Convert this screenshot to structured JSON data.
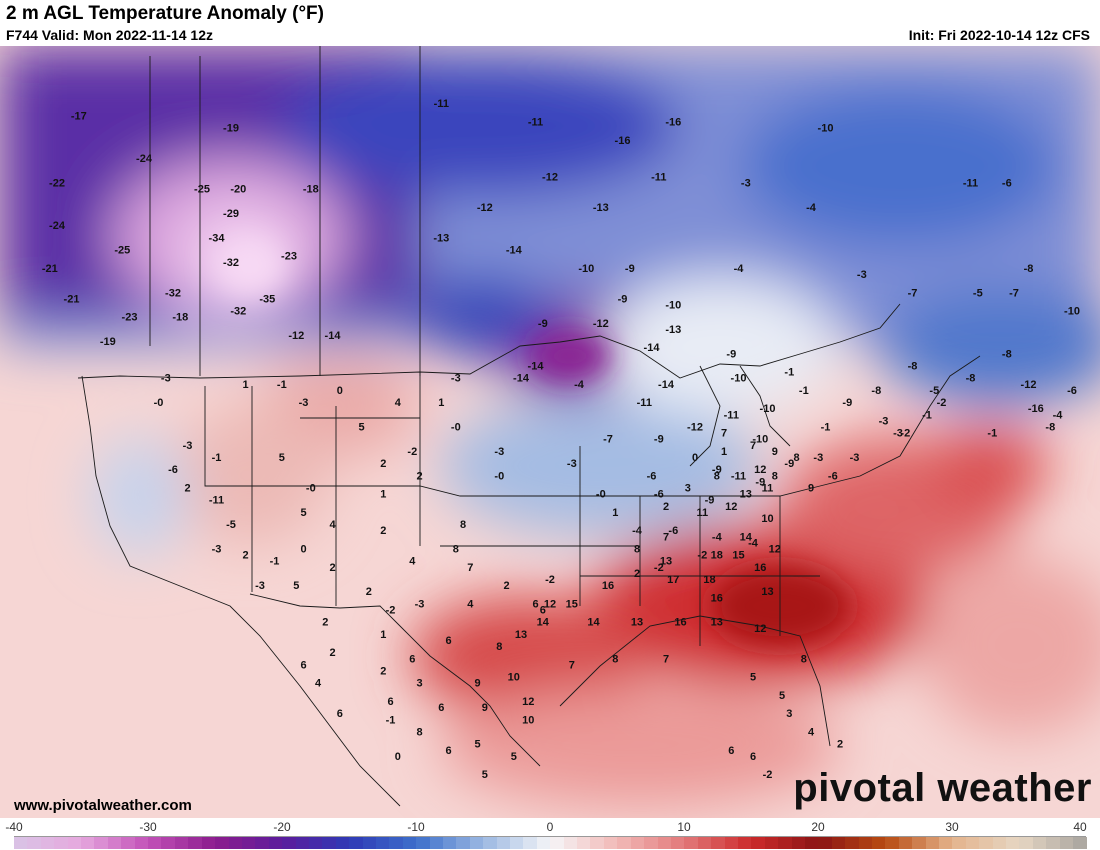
{
  "header": {
    "title": "2 m AGL Temperature Anomaly (°F)",
    "valid": "F744 Valid: Mon 2022-11-14 12z",
    "init": "Init: Fri 2022-10-14 12z CFS"
  },
  "footer": {
    "website": "www.pivotalweather.com",
    "brand": "pivotal weather"
  },
  "legend": {
    "ticks": [
      "-40",
      "-30",
      "-20",
      "-10",
      "0",
      "10",
      "20",
      "30",
      "40"
    ],
    "range": [
      -40,
      40
    ],
    "stops": [
      {
        "v": -40,
        "c": "#d9c4e6"
      },
      {
        "v": -35,
        "c": "#e6a8de"
      },
      {
        "v": -30,
        "c": "#c251b8"
      },
      {
        "v": -25,
        "c": "#8c1c8e"
      },
      {
        "v": -20,
        "c": "#5b1c9c"
      },
      {
        "v": -15,
        "c": "#2f3ab6"
      },
      {
        "v": -10,
        "c": "#3d6fcb"
      },
      {
        "v": -5,
        "c": "#9bb8e2"
      },
      {
        "v": 0,
        "c": "#f5f5f7"
      },
      {
        "v": 5,
        "c": "#f2b9b7"
      },
      {
        "v": 10,
        "c": "#e2797a"
      },
      {
        "v": 15,
        "c": "#cc2a2b"
      },
      {
        "v": 20,
        "c": "#8c1515"
      },
      {
        "v": 25,
        "c": "#b84b12"
      },
      {
        "v": 30,
        "c": "#e4b38c"
      },
      {
        "v": 35,
        "c": "#e6d6c3"
      },
      {
        "v": 40,
        "c": "#a8a49e"
      }
    ]
  },
  "map_values": [
    {
      "v": "-17",
      "lon": -127.5,
      "lat": 61.0
    },
    {
      "v": "-19",
      "lon": -117.0,
      "lat": 60.0
    },
    {
      "v": "-17",
      "lon": -133.0,
      "lat": 57.5
    },
    {
      "v": "-24",
      "lon": -123.0,
      "lat": 57.5
    },
    {
      "v": "-22",
      "lon": -129.0,
      "lat": 55.5
    },
    {
      "v": "-25",
      "lon": -119.0,
      "lat": 55.0
    },
    {
      "v": "-20",
      "lon": -116.5,
      "lat": 55.0
    },
    {
      "v": "-18",
      "lon": -111.5,
      "lat": 55.0
    },
    {
      "v": "-29",
      "lon": -117.0,
      "lat": 53.0
    },
    {
      "v": "-24",
      "lon": -129.0,
      "lat": 52.0
    },
    {
      "v": "-34",
      "lon": -118.0,
      "lat": 51.0
    },
    {
      "v": "-25",
      "lon": -124.5,
      "lat": 50.0
    },
    {
      "v": "-32",
      "lon": -117.0,
      "lat": 49.0
    },
    {
      "v": "-23",
      "lon": -113.0,
      "lat": 49.5
    },
    {
      "v": "-32",
      "lon": -121.0,
      "lat": 46.5
    },
    {
      "v": "-35",
      "lon": -114.5,
      "lat": 46.0
    },
    {
      "v": "-32",
      "lon": -116.5,
      "lat": 45.0
    },
    {
      "v": "-23",
      "lon": -124.0,
      "lat": 44.5
    },
    {
      "v": "-18",
      "lon": -120.5,
      "lat": 44.5
    },
    {
      "v": "-19",
      "lon": -125.5,
      "lat": 42.5
    },
    {
      "v": "-12",
      "lon": -112.5,
      "lat": 43.0
    },
    {
      "v": "-14",
      "lon": -110.0,
      "lat": 43.0
    },
    {
      "v": "-21",
      "lon": -129.5,
      "lat": 48.5
    },
    {
      "v": "-21",
      "lon": -128.0,
      "lat": 46.0
    },
    {
      "v": "-11",
      "lon": -102.5,
      "lat": 62.0
    },
    {
      "v": "-11",
      "lon": -96.0,
      "lat": 60.5
    },
    {
      "v": "-16",
      "lon": -86.5,
      "lat": 60.5
    },
    {
      "v": "-16",
      "lon": -90.0,
      "lat": 59.0
    },
    {
      "v": "-12",
      "lon": -99.5,
      "lat": 53.5
    },
    {
      "v": "-13",
      "lon": -102.5,
      "lat": 51.0
    },
    {
      "v": "-12",
      "lon": -95.0,
      "lat": 56.0
    },
    {
      "v": "-11",
      "lon": -87.5,
      "lat": 56.0
    },
    {
      "v": "-13",
      "lon": -91.5,
      "lat": 53.5
    },
    {
      "v": "-14",
      "lon": -97.5,
      "lat": 50.0
    },
    {
      "v": "-10",
      "lon": -92.5,
      "lat": 48.5
    },
    {
      "v": "-9",
      "lon": -89.5,
      "lat": 48.5
    },
    {
      "v": "-10",
      "lon": -76.0,
      "lat": 60.0
    },
    {
      "v": "-3",
      "lon": -81.5,
      "lat": 55.5
    },
    {
      "v": "-4",
      "lon": -77.0,
      "lat": 53.5
    },
    {
      "v": "-4",
      "lon": -82.0,
      "lat": 48.5
    },
    {
      "v": "-11",
      "lon": -66.0,
      "lat": 55.5
    },
    {
      "v": "-6",
      "lon": -63.5,
      "lat": 55.5
    },
    {
      "v": "-3",
      "lon": -73.5,
      "lat": 48.0
    },
    {
      "v": "-7",
      "lon": -70.0,
      "lat": 46.5
    },
    {
      "v": "-5",
      "lon": -65.5,
      "lat": 46.5
    },
    {
      "v": "-7",
      "lon": -63.0,
      "lat": 46.5
    },
    {
      "v": "-8",
      "lon": -62.0,
      "lat": 48.5
    },
    {
      "v": "-11",
      "lon": -57.5,
      "lat": 46.5
    },
    {
      "v": "-10",
      "lon": -59.0,
      "lat": 45.0
    },
    {
      "v": "-14",
      "lon": -53.5,
      "lat": 42.5
    },
    {
      "v": "-11",
      "lon": -57.0,
      "lat": 42.0
    },
    {
      "v": "-9",
      "lon": -90.0,
      "lat": 46.0
    },
    {
      "v": "-10",
      "lon": -86.5,
      "lat": 45.5
    },
    {
      "v": "-13",
      "lon": -86.5,
      "lat": 43.5
    },
    {
      "v": "-12",
      "lon": -91.5,
      "lat": 44.0
    },
    {
      "v": "-9",
      "lon": -95.5,
      "lat": 44.0
    },
    {
      "v": "-14",
      "lon": -88.0,
      "lat": 42.0
    },
    {
      "v": "-14",
      "lon": -96.0,
      "lat": 40.5
    },
    {
      "v": "-9",
      "lon": -82.5,
      "lat": 41.5
    },
    {
      "v": "-10",
      "lon": -82.0,
      "lat": 39.5
    },
    {
      "v": "-4",
      "lon": -93.0,
      "lat": 39.0
    },
    {
      "v": "-14",
      "lon": -87.0,
      "lat": 39.0
    },
    {
      "v": "-11",
      "lon": -88.5,
      "lat": 37.5
    },
    {
      "v": "-10",
      "lon": -80.0,
      "lat": 37.0
    },
    {
      "v": "-11",
      "lon": -82.5,
      "lat": 36.5
    },
    {
      "v": "-12",
      "lon": -85.0,
      "lat": 35.5
    },
    {
      "v": "-7",
      "lon": -91.0,
      "lat": 34.5
    },
    {
      "v": "-9",
      "lon": -87.5,
      "lat": 34.5
    },
    {
      "v": "-10",
      "lon": -80.5,
      "lat": 34.5
    },
    {
      "v": "-9",
      "lon": -78.5,
      "lat": 32.5
    },
    {
      "v": "-11",
      "lon": -82.0,
      "lat": 31.5
    },
    {
      "v": "-9",
      "lon": -80.5,
      "lat": 31.0
    },
    {
      "v": "-6",
      "lon": -88.0,
      "lat": 31.5
    },
    {
      "v": "-6",
      "lon": -87.5,
      "lat": 30.0
    },
    {
      "v": "-9",
      "lon": -84.0,
      "lat": 29.5
    },
    {
      "v": "-9",
      "lon": -83.5,
      "lat": 32.0
    },
    {
      "v": "-3",
      "lon": -93.5,
      "lat": 32.5
    },
    {
      "v": "-0",
      "lon": -91.5,
      "lat": 30.0
    },
    {
      "v": "-4",
      "lon": -89.0,
      "lat": 27.0
    },
    {
      "v": "-6",
      "lon": -86.5,
      "lat": 27.0
    },
    {
      "v": "-4",
      "lon": -83.5,
      "lat": 26.5
    },
    {
      "v": "-4",
      "lon": -81.0,
      "lat": 26.0
    },
    {
      "v": "-2",
      "lon": -84.5,
      "lat": 25.0
    },
    {
      "v": "-2",
      "lon": -87.5,
      "lat": 24.0
    },
    {
      "v": "2",
      "lon": -89.0,
      "lat": 23.5
    },
    {
      "v": "-1",
      "lon": -78.5,
      "lat": 40.0
    },
    {
      "v": "-1",
      "lon": -77.5,
      "lat": 38.5
    },
    {
      "v": "-9",
      "lon": -74.5,
      "lat": 37.5
    },
    {
      "v": "-8",
      "lon": -72.5,
      "lat": 38.5
    },
    {
      "v": "-3",
      "lon": -72.0,
      "lat": 36.0
    },
    {
      "v": "-3",
      "lon": -74.0,
      "lat": 33.0
    },
    {
      "v": "-6",
      "lon": -75.5,
      "lat": 31.5
    },
    {
      "v": "-1",
      "lon": -76.0,
      "lat": 35.5
    },
    {
      "v": "-3",
      "lon": -76.5,
      "lat": 33.0
    },
    {
      "v": "-3",
      "lon": -71.0,
      "lat": 35.0
    },
    {
      "v": "-8",
      "lon": -70.0,
      "lat": 40.5
    },
    {
      "v": "-5",
      "lon": -68.5,
      "lat": 38.5
    },
    {
      "v": "-2",
      "lon": -68.0,
      "lat": 37.5
    },
    {
      "v": "-1",
      "lon": -69.0,
      "lat": 36.5
    },
    {
      "v": "-2",
      "lon": -70.5,
      "lat": 35.0
    },
    {
      "v": "-8",
      "lon": -63.5,
      "lat": 41.5
    },
    {
      "v": "-8",
      "lon": -66.0,
      "lat": 39.5
    },
    {
      "v": "-12",
      "lon": -62.0,
      "lat": 39.0
    },
    {
      "v": "-16",
      "lon": -61.5,
      "lat": 37.0
    },
    {
      "v": "-8",
      "lon": -60.5,
      "lat": 35.5
    },
    {
      "v": "-4",
      "lon": -60.0,
      "lat": 36.5
    },
    {
      "v": "-1",
      "lon": -64.5,
      "lat": 35.0
    },
    {
      "v": "-6",
      "lon": -59.0,
      "lat": 38.5
    },
    {
      "v": "-11",
      "lon": -57.0,
      "lat": 39.5
    },
    {
      "v": "-3",
      "lon": -121.5,
      "lat": 39.5
    },
    {
      "v": "1",
      "lon": -116.0,
      "lat": 39.0
    },
    {
      "v": "-1",
      "lon": -113.5,
      "lat": 39.0
    },
    {
      "v": "0",
      "lon": -109.5,
      "lat": 38.5
    },
    {
      "v": "-0",
      "lon": -122.0,
      "lat": 37.5
    },
    {
      "v": "-3",
      "lon": -112.0,
      "lat": 37.5
    },
    {
      "v": "4",
      "lon": -105.5,
      "lat": 37.5
    },
    {
      "v": "1",
      "lon": -102.5,
      "lat": 37.5
    },
    {
      "v": "-3",
      "lon": -101.5,
      "lat": 39.5
    },
    {
      "v": "-14",
      "lon": -97.0,
      "lat": 39.5
    },
    {
      "v": "-0",
      "lon": -101.5,
      "lat": 35.5
    },
    {
      "v": "5",
      "lon": -108.0,
      "lat": 35.5
    },
    {
      "v": "-3",
      "lon": -120.0,
      "lat": 34.0
    },
    {
      "v": "-1",
      "lon": -118.0,
      "lat": 33.0
    },
    {
      "v": "5",
      "lon": -113.5,
      "lat": 33.0
    },
    {
      "v": "-6",
      "lon": -121.0,
      "lat": 32.0
    },
    {
      "v": "2",
      "lon": -106.5,
      "lat": 32.5
    },
    {
      "v": "-2",
      "lon": -104.5,
      "lat": 33.5
    },
    {
      "v": "-3",
      "lon": -98.5,
      "lat": 33.5
    },
    {
      "v": "2",
      "lon": -104.0,
      "lat": 31.5
    },
    {
      "v": "2",
      "lon": -120.0,
      "lat": 30.5
    },
    {
      "v": "-11",
      "lon": -118.0,
      "lat": 29.5
    },
    {
      "v": "-0",
      "lon": -111.5,
      "lat": 30.5
    },
    {
      "v": "1",
      "lon": -106.5,
      "lat": 30.0
    },
    {
      "v": "-0",
      "lon": -98.5,
      "lat": 31.5
    },
    {
      "v": "-5",
      "lon": -117.0,
      "lat": 27.5
    },
    {
      "v": "5",
      "lon": -112.0,
      "lat": 28.5
    },
    {
      "v": "4",
      "lon": -110.0,
      "lat": 27.5
    },
    {
      "v": "2",
      "lon": -106.5,
      "lat": 27.0
    },
    {
      "v": "8",
      "lon": -101.0,
      "lat": 27.5
    },
    {
      "v": "8",
      "lon": -101.5,
      "lat": 25.5
    },
    {
      "v": "-3",
      "lon": -118.0,
      "lat": 25.5
    },
    {
      "v": "2",
      "lon": -116.0,
      "lat": 25.0
    },
    {
      "v": "-1",
      "lon": -114.0,
      "lat": 24.5
    },
    {
      "v": "0",
      "lon": -112.0,
      "lat": 25.5
    },
    {
      "v": "2",
      "lon": -110.0,
      "lat": 24.0
    },
    {
      "v": "4",
      "lon": -104.5,
      "lat": 24.5
    },
    {
      "v": "7",
      "lon": -100.5,
      "lat": 24.0
    },
    {
      "v": "-3",
      "lon": -115.0,
      "lat": 22.5
    },
    {
      "v": "5",
      "lon": -112.5,
      "lat": 22.5
    },
    {
      "v": "2",
      "lon": -107.5,
      "lat": 22.0
    },
    {
      "v": "4",
      "lon": -100.5,
      "lat": 21.0
    },
    {
      "v": "2",
      "lon": -98.0,
      "lat": 22.5
    },
    {
      "v": "-2",
      "lon": -106.0,
      "lat": 20.5
    },
    {
      "v": "-2",
      "lon": -95.0,
      "lat": 23.0
    },
    {
      "v": "2",
      "lon": -110.5,
      "lat": 19.5
    },
    {
      "v": "1",
      "lon": -106.5,
      "lat": 18.5
    },
    {
      "v": "-3",
      "lon": -104.0,
      "lat": 21.0
    },
    {
      "v": "2",
      "lon": -110.0,
      "lat": 17.0
    },
    {
      "v": "6",
      "lon": -102.0,
      "lat": 18.0
    },
    {
      "v": "6",
      "lon": -95.5,
      "lat": 20.5
    },
    {
      "v": "6",
      "lon": -104.5,
      "lat": 16.5
    },
    {
      "v": "2",
      "lon": -106.5,
      "lat": 15.5
    },
    {
      "v": "3",
      "lon": -104.0,
      "lat": 14.5
    },
    {
      "v": "9",
      "lon": -100.0,
      "lat": 14.5
    },
    {
      "v": "10",
      "lon": -97.5,
      "lat": 15.0
    },
    {
      "v": "6",
      "lon": -106.0,
      "lat": 13.0
    },
    {
      "v": "6",
      "lon": -102.5,
      "lat": 12.5
    },
    {
      "v": "9",
      "lon": -99.5,
      "lat": 12.5
    },
    {
      "v": "12",
      "lon": -96.5,
      "lat": 13.0
    },
    {
      "v": "-1",
      "lon": -106.0,
      "lat": 11.5
    },
    {
      "v": "8",
      "lon": -104.0,
      "lat": 10.5
    },
    {
      "v": "10",
      "lon": -96.5,
      "lat": 11.5
    },
    {
      "v": "0",
      "lon": -105.5,
      "lat": 8.5
    },
    {
      "v": "6",
      "lon": -102.0,
      "lat": 9.0
    },
    {
      "v": "5",
      "lon": -100.0,
      "lat": 9.5
    },
    {
      "v": "5",
      "lon": -97.5,
      "lat": 8.5
    },
    {
      "v": "5",
      "lon": -99.5,
      "lat": 7.0
    },
    {
      "v": "4",
      "lon": -111.0,
      "lat": 14.5
    },
    {
      "v": "6",
      "lon": -109.5,
      "lat": 12.0
    },
    {
      "v": "6",
      "lon": -112.0,
      "lat": 16.0
    },
    {
      "v": "13",
      "lon": -97.0,
      "lat": 18.5
    },
    {
      "v": "8",
      "lon": -98.5,
      "lat": 17.5
    },
    {
      "v": "7",
      "lon": -93.5,
      "lat": 16.0
    },
    {
      "v": "8",
      "lon": -90.5,
      "lat": 16.5
    },
    {
      "v": "7",
      "lon": -87.0,
      "lat": 16.5
    },
    {
      "v": "6",
      "lon": -96.0,
      "lat": 21.0
    },
    {
      "v": "12",
      "lon": -95.0,
      "lat": 21.0
    },
    {
      "v": "14",
      "lon": -95.5,
      "lat": 19.5
    },
    {
      "v": "14",
      "lon": -92.0,
      "lat": 19.5
    },
    {
      "v": "15",
      "lon": -93.5,
      "lat": 21.0
    },
    {
      "v": "13",
      "lon": -89.0,
      "lat": 19.5
    },
    {
      "v": "16",
      "lon": -86.0,
      "lat": 19.5
    },
    {
      "v": "16",
      "lon": -91.0,
      "lat": 22.5
    },
    {
      "v": "13",
      "lon": -87.0,
      "lat": 24.5
    },
    {
      "v": "17",
      "lon": -86.5,
      "lat": 23.0
    },
    {
      "v": "18",
      "lon": -84.0,
      "lat": 23.0
    },
    {
      "v": "16",
      "lon": -83.5,
      "lat": 21.5
    },
    {
      "v": "13",
      "lon": -83.5,
      "lat": 19.5
    },
    {
      "v": "12",
      "lon": -80.5,
      "lat": 19.0
    },
    {
      "v": "13",
      "lon": -80.0,
      "lat": 22.0
    },
    {
      "v": "15",
      "lon": -82.0,
      "lat": 25.0
    },
    {
      "v": "16",
      "lon": -80.5,
      "lat": 24.0
    },
    {
      "v": "18",
      "lon": -83.5,
      "lat": 25.0
    },
    {
      "v": "12",
      "lon": -79.5,
      "lat": 25.5
    },
    {
      "v": "14",
      "lon": -81.5,
      "lat": 26.5
    },
    {
      "v": "8",
      "lon": -89.0,
      "lat": 25.5
    },
    {
      "v": "7",
      "lon": -87.0,
      "lat": 26.5
    },
    {
      "v": "11",
      "lon": -84.5,
      "lat": 28.5
    },
    {
      "v": "2",
      "lon": -87.0,
      "lat": 29.0
    },
    {
      "v": "1",
      "lon": -90.5,
      "lat": 28.5
    },
    {
      "v": "12",
      "lon": -82.5,
      "lat": 29.0
    },
    {
      "v": "10",
      "lon": -80.0,
      "lat": 28.0
    },
    {
      "v": "13",
      "lon": -81.5,
      "lat": 30.0
    },
    {
      "v": "11",
      "lon": -80.0,
      "lat": 30.5
    },
    {
      "v": "12",
      "lon": -80.5,
      "lat": 32.0
    },
    {
      "v": "8",
      "lon": -79.5,
      "lat": 31.5
    },
    {
      "v": "8",
      "lon": -83.5,
      "lat": 31.5
    },
    {
      "v": "3",
      "lon": -85.5,
      "lat": 30.5
    },
    {
      "v": "0",
      "lon": -85.0,
      "lat": 33.0
    },
    {
      "v": "1",
      "lon": -83.0,
      "lat": 33.5
    },
    {
      "v": "7",
      "lon": -81.0,
      "lat": 34.0
    },
    {
      "v": "7",
      "lon": -83.0,
      "lat": 35.0
    },
    {
      "v": "9",
      "lon": -79.5,
      "lat": 33.5
    },
    {
      "v": "8",
      "lon": -78.0,
      "lat": 33.0
    },
    {
      "v": "9",
      "lon": -77.0,
      "lat": 30.5
    },
    {
      "v": "8",
      "lon": -77.5,
      "lat": 16.5
    },
    {
      "v": "5",
      "lon": -81.0,
      "lat": 15.0
    },
    {
      "v": "5",
      "lon": -79.0,
      "lat": 13.5
    },
    {
      "v": "3",
      "lon": -78.5,
      "lat": 12.0
    },
    {
      "v": "4",
      "lon": -77.0,
      "lat": 10.5
    },
    {
      "v": "2",
      "lon": -75.0,
      "lat": 9.5
    },
    {
      "v": "6",
      "lon": -81.0,
      "lat": 8.5
    },
    {
      "v": "-2",
      "lon": -80.0,
      "lat": 7.0
    },
    {
      "v": "6",
      "lon": -82.5,
      "lat": 9.0
    }
  ]
}
